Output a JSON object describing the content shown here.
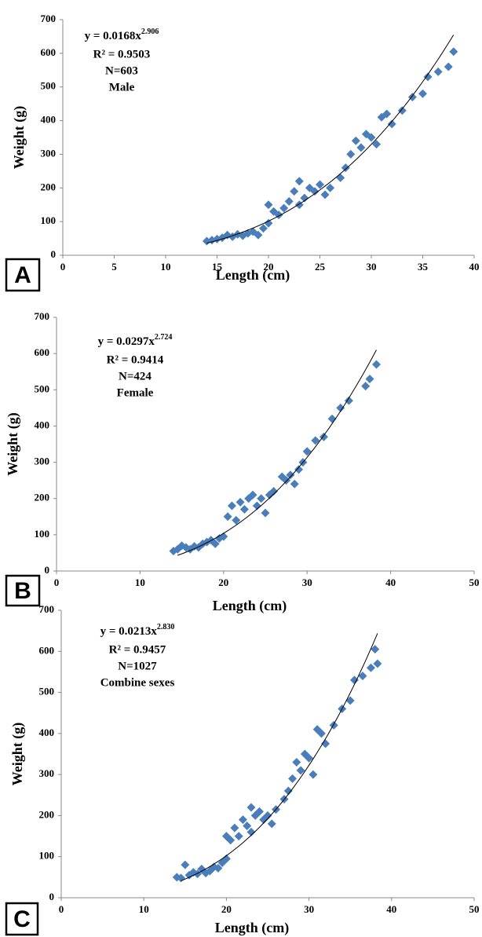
{
  "chart_data": [
    {
      "type": "scatter",
      "panel_label": "A",
      "xlabel": "Length (cm)",
      "ylabel": "Weight (g)",
      "equation": {
        "text": "y = 0.0168x",
        "superscript": "2.906"
      },
      "annotations": [
        "R² = 0.9503",
        "N=603",
        "Male"
      ],
      "fit": {
        "coefficient": 0.0168,
        "exponent": 2.906,
        "xlim": [
          14,
          38
        ]
      },
      "xlim": [
        0,
        40
      ],
      "xticks": [
        0,
        5,
        10,
        15,
        20,
        25,
        30,
        35,
        40
      ],
      "ylim": [
        0,
        700
      ],
      "yticks": [
        0,
        100,
        200,
        300,
        400,
        500,
        600,
        700
      ],
      "color": "#4a7ebb",
      "x": [
        14,
        14.5,
        15,
        15.5,
        16,
        16.5,
        17,
        17.5,
        18,
        18.5,
        19,
        19.5,
        20,
        20,
        20.5,
        21,
        21.5,
        22,
        22.5,
        23,
        23,
        23.5,
        24,
        24.5,
        25,
        25.5,
        26,
        27,
        27.5,
        28,
        28.5,
        29,
        29.5,
        30,
        30.5,
        31,
        31.5,
        32,
        33,
        34,
        35,
        35.5,
        36.5,
        37.5,
        38
      ],
      "values": [
        42,
        45,
        48,
        52,
        60,
        55,
        62,
        58,
        65,
        70,
        60,
        80,
        95,
        150,
        130,
        120,
        140,
        160,
        190,
        220,
        150,
        170,
        200,
        190,
        210,
        180,
        200,
        230,
        260,
        300,
        340,
        320,
        360,
        350,
        330,
        410,
        420,
        390,
        430,
        470,
        480,
        530,
        545,
        560,
        605
      ]
    },
    {
      "type": "scatter",
      "panel_label": "B",
      "xlabel": "Length (cm)",
      "ylabel": "Weight (g)",
      "equation": {
        "text": "y = 0.0297x",
        "superscript": "2.724"
      },
      "annotations": [
        "R² = 0.9414",
        "N=424",
        "Female"
      ],
      "fit": {
        "coefficient": 0.0297,
        "exponent": 2.724,
        "xlim": [
          14.5,
          38.3
        ]
      },
      "xlim": [
        0,
        50
      ],
      "xticks": [
        0,
        10,
        20,
        30,
        40,
        50
      ],
      "ylim": [
        0,
        700
      ],
      "yticks": [
        0,
        100,
        200,
        300,
        400,
        500,
        600,
        700
      ],
      "color": "#4a7ebb",
      "x": [
        14,
        14.5,
        15,
        15.5,
        16,
        16.5,
        17,
        17.5,
        18,
        18.5,
        19,
        19.5,
        20,
        20.5,
        21,
        21.5,
        22,
        22.5,
        23,
        23.5,
        24,
        24.5,
        25,
        25.5,
        26,
        27,
        27.5,
        28,
        28.5,
        29,
        29.5,
        30,
        31,
        32,
        33,
        34,
        35,
        37,
        37.5,
        38.3
      ],
      "values": [
        55,
        60,
        70,
        65,
        60,
        68,
        65,
        75,
        80,
        85,
        75,
        90,
        95,
        150,
        180,
        140,
        190,
        170,
        200,
        210,
        180,
        200,
        160,
        210,
        220,
        260,
        250,
        265,
        240,
        280,
        300,
        330,
        360,
        370,
        420,
        450,
        470,
        510,
        530,
        570
      ]
    },
    {
      "type": "scatter",
      "panel_label": "C",
      "xlabel": "Length (cm)",
      "ylabel": "Weight (g)",
      "equation": {
        "text": "y = 0.0213x",
        "superscript": "2.830"
      },
      "annotations": [
        "R² = 0.9457",
        "N=1027",
        "Combine sexes"
      ],
      "fit": {
        "coefficient": 0.0213,
        "exponent": 2.83,
        "xlim": [
          14.5,
          38.3
        ]
      },
      "xlim": [
        0,
        50
      ],
      "xticks": [
        0,
        10,
        20,
        30,
        40,
        50
      ],
      "ylim": [
        0,
        700
      ],
      "yticks": [
        0,
        100,
        200,
        300,
        400,
        500,
        600,
        700
      ],
      "color": "#4a7ebb",
      "x": [
        14,
        14.5,
        15,
        15.5,
        16,
        16.5,
        17,
        17.5,
        18,
        18.5,
        19,
        19.5,
        20,
        20,
        20.5,
        21,
        21.5,
        22,
        22.5,
        23,
        23,
        23.5,
        24,
        24.5,
        25,
        25.5,
        26,
        27,
        27.5,
        28,
        28.5,
        29,
        29.5,
        30,
        30.5,
        31,
        31.5,
        32,
        33,
        34,
        35,
        35.5,
        36.5,
        37.5,
        38,
        38.3
      ],
      "values": [
        50,
        48,
        80,
        55,
        62,
        58,
        70,
        60,
        65,
        75,
        72,
        85,
        95,
        150,
        140,
        170,
        150,
        190,
        175,
        220,
        160,
        200,
        210,
        190,
        200,
        180,
        215,
        240,
        260,
        290,
        330,
        310,
        350,
        340,
        300,
        410,
        400,
        375,
        420,
        460,
        480,
        530,
        540,
        560,
        605,
        570
      ]
    }
  ]
}
